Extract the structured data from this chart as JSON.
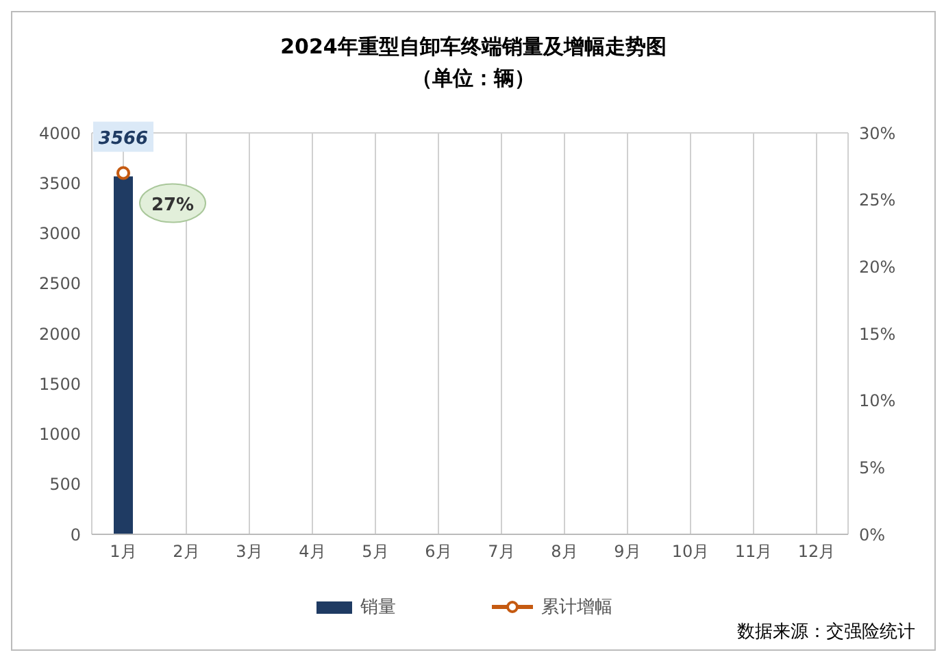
{
  "chart_data": {
    "type": "bar",
    "title": "2024年重型自卸车终端销量及增幅走势图",
    "subtitle": "（单位：辆）",
    "categories": [
      "1月",
      "2月",
      "3月",
      "4月",
      "5月",
      "6月",
      "7月",
      "8月",
      "9月",
      "10月",
      "11月",
      "12月"
    ],
    "series": [
      {
        "name": "销量",
        "color": "#1f3b63",
        "values": [
          3566,
          null,
          null,
          null,
          null,
          null,
          null,
          null,
          null,
          null,
          null,
          null
        ],
        "value_labels": [
          "3566",
          null,
          null,
          null,
          null,
          null,
          null,
          null,
          null,
          null,
          null,
          null
        ]
      },
      {
        "name": "累计增幅",
        "type": "line",
        "axis": "y2",
        "color": "#c55a11",
        "marker": "circle",
        "values": [
          27,
          null,
          null,
          null,
          null,
          null,
          null,
          null,
          null,
          null,
          null,
          null
        ],
        "value_labels": [
          "27%",
          null,
          null,
          null,
          null,
          null,
          null,
          null,
          null,
          null,
          null,
          null
        ]
      }
    ],
    "ylim": [
      0,
      4000
    ],
    "yticks": [
      0,
      500,
      1000,
      1500,
      2000,
      2500,
      3000,
      3500,
      4000
    ],
    "y2lim": [
      0,
      30
    ],
    "y2ticks": [
      {
        "value": 0,
        "label": "0%"
      },
      {
        "value": 5,
        "label": "5%"
      },
      {
        "value": 10,
        "label": "10%"
      },
      {
        "value": 15,
        "label": "15%"
      },
      {
        "value": 20,
        "label": "20%"
      },
      {
        "value": 25,
        "label": "25%"
      },
      {
        "value": 30,
        "label": "30%"
      }
    ],
    "grid": true,
    "legend": "bottom",
    "annotations": [
      "数据来源：交强险统计"
    ]
  }
}
